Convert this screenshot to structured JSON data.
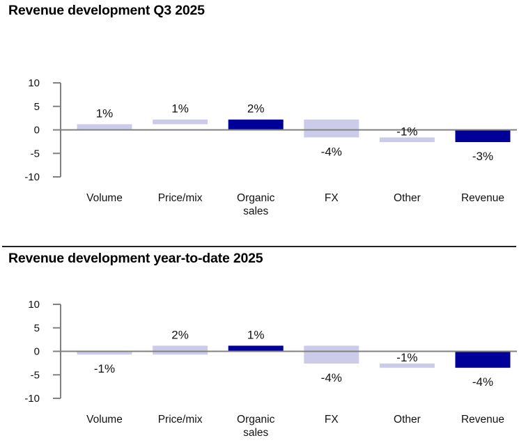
{
  "chart_data": [
    {
      "type": "bar",
      "subtype": "waterfall",
      "title": "Revenue development Q3 2025",
      "xlabel": "",
      "ylabel": "",
      "ylim": [
        -10,
        10
      ],
      "yticks": [
        "10",
        "5",
        "0",
        "-5",
        "-10"
      ],
      "ytick_values": [
        10,
        5,
        0,
        -5,
        -10
      ],
      "grid": false,
      "legend": "none",
      "categories": [
        "Volume",
        "Price/mix",
        "Organic sales",
        "FX",
        "Other",
        "Revenue"
      ],
      "category_lines": [
        [
          "Volume"
        ],
        [
          "Price/mix"
        ],
        [
          "Organic",
          "sales"
        ],
        [
          "FX"
        ],
        [
          "Other"
        ],
        [
          "Revenue"
        ]
      ],
      "values": [
        1,
        1,
        2,
        -4,
        -1,
        -3
      ],
      "data_labels": [
        "1%",
        "1%",
        "2%",
        "-4%",
        "-1%",
        "-3%"
      ],
      "bar_start": [
        0,
        1.2,
        0,
        2.2,
        -1.6,
        0
      ],
      "bar_end": [
        1.2,
        2.2,
        2.2,
        -1.6,
        -2.6,
        -2.6
      ],
      "bar_kind": [
        "delta",
        "delta",
        "total",
        "delta",
        "delta",
        "total"
      ]
    },
    {
      "type": "bar",
      "subtype": "waterfall",
      "title": "Revenue development year-to-date 2025",
      "xlabel": "",
      "ylabel": "",
      "ylim": [
        -10,
        10
      ],
      "yticks": [
        "10",
        "5",
        "0",
        "-5",
        "-10"
      ],
      "ytick_values": [
        10,
        5,
        0,
        -5,
        -10
      ],
      "grid": false,
      "legend": "none",
      "categories": [
        "Volume",
        "Price/mix",
        "Organic sales",
        "FX",
        "Other",
        "Revenue"
      ],
      "category_lines": [
        [
          "Volume"
        ],
        [
          "Price/mix"
        ],
        [
          "Organic",
          "sales"
        ],
        [
          "FX"
        ],
        [
          "Other"
        ],
        [
          "Revenue"
        ]
      ],
      "values": [
        -1,
        2,
        1,
        -4,
        -1,
        -4
      ],
      "data_labels": [
        "-1%",
        "2%",
        "1%",
        "-4%",
        "-1%",
        "-4%"
      ],
      "bar_start": [
        0,
        -0.7,
        0,
        1.2,
        -2.6,
        0
      ],
      "bar_end": [
        -0.7,
        1.2,
        1.2,
        -2.6,
        -3.5,
        -3.5
      ],
      "bar_kind": [
        "delta",
        "delta",
        "total",
        "delta",
        "delta",
        "total"
      ]
    }
  ],
  "colors": {
    "delta_bar": "#ccccea",
    "total_bar": "#000099",
    "axis": "#808080",
    "text": "#111111"
  }
}
